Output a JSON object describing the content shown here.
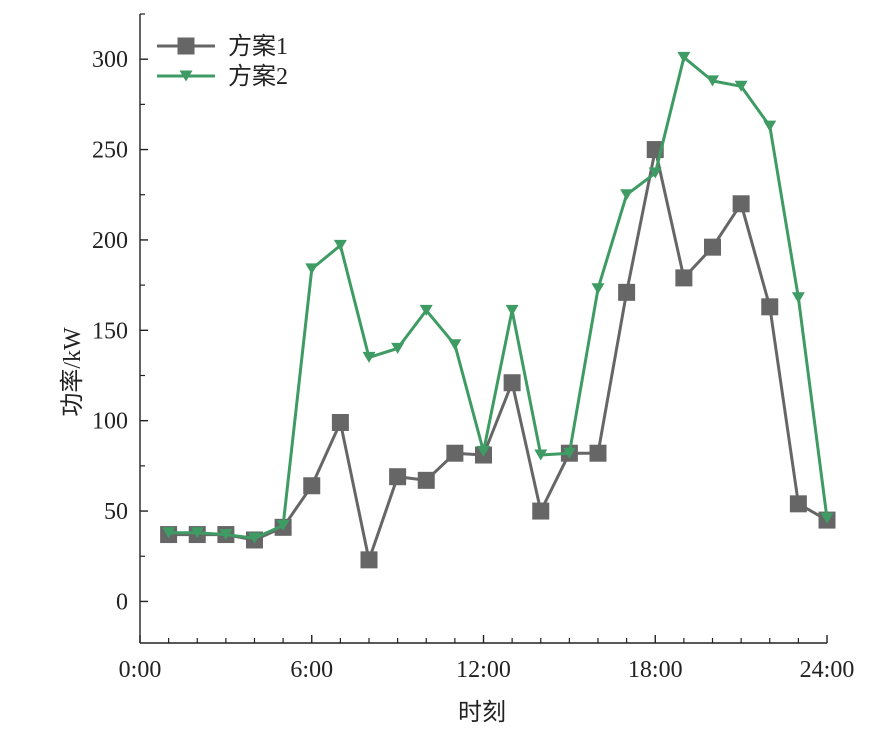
{
  "chart_data": {
    "type": "line",
    "title": "",
    "xlabel": "时刻",
    "ylabel": "功率/kW",
    "x_tick_labels": [
      "0:00",
      "6:00",
      "12:00",
      "18:00",
      "24:00"
    ],
    "x_tick_hours": [
      0,
      6,
      12,
      18,
      24
    ],
    "y_ticks": [
      0,
      50,
      100,
      150,
      200,
      250,
      300
    ],
    "xlim": [
      0,
      24
    ],
    "ylim": [
      -23,
      325
    ],
    "grid": false,
    "legend_position": "top-left",
    "x_hours": [
      1,
      2,
      3,
      4,
      5,
      6,
      7,
      8,
      9,
      10,
      11,
      12,
      13,
      14,
      15,
      16,
      17,
      18,
      19,
      20,
      21,
      22,
      23,
      24
    ],
    "series": [
      {
        "name": "方案1",
        "color": "#666666",
        "marker": "square",
        "values": [
          37,
          37,
          37,
          34,
          41,
          64,
          99,
          23,
          69,
          67,
          82,
          81,
          121,
          50,
          82,
          82,
          171,
          250,
          179,
          196,
          220,
          163,
          54,
          45
        ]
      },
      {
        "name": "方案2",
        "color": "#3e9b63",
        "marker": "triangle-down",
        "values": [
          38,
          38,
          37,
          35,
          42,
          184,
          197,
          135,
          140,
          161,
          142,
          83,
          161,
          81,
          82,
          173,
          225,
          237,
          301,
          288,
          285,
          263,
          168,
          46
        ]
      }
    ]
  }
}
